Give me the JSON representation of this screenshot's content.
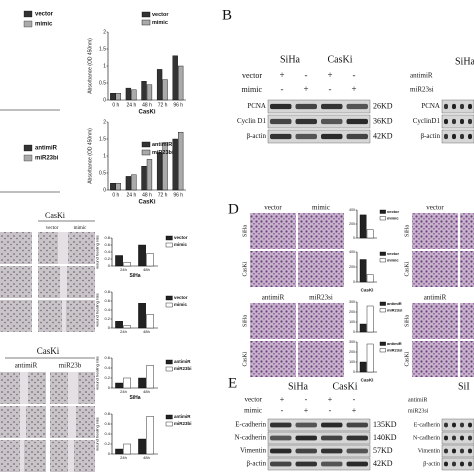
{
  "panel_labels": [
    "B",
    "D",
    "E"
  ],
  "left_legends": [
    [
      "vector",
      "mimic"
    ],
    [
      "antimiR",
      "miR23bi"
    ]
  ],
  "blot_b": {
    "cell_lines": [
      "SiHa",
      "CasKi"
    ],
    "conditions": [
      {
        "name": "vector",
        "signs": [
          "+",
          "-",
          "+",
          "-"
        ]
      },
      {
        "name": "mimic",
        "signs": [
          "-",
          "+",
          "-",
          "+"
        ]
      }
    ],
    "proteins": [
      "PCNA",
      "Cyclin D1",
      "β-actin"
    ],
    "sizes": [
      "26KD",
      "36KD",
      "42KD"
    ]
  },
  "blot_b_right": {
    "cell_line": "SiHa",
    "conditions": [
      "antimiR",
      "miR23si"
    ],
    "proteins": [
      "PCNA",
      "CyclinD1",
      "β-actin"
    ]
  },
  "wound": {
    "top": {
      "title": "CasKi",
      "groups": [
        "vector",
        "mimic"
      ]
    },
    "bottom": {
      "title": "CasKi",
      "groups": [
        "antimiR",
        "miR23b"
      ]
    }
  },
  "transwell": {
    "top": {
      "groups": [
        "vector",
        "mimic"
      ],
      "rows": [
        "SiHa",
        "CasKi"
      ]
    },
    "bottom": {
      "groups": [
        "antimiR",
        "miR23si"
      ],
      "rows": [
        "SiHa",
        "CasKi"
      ]
    },
    "right_top": {
      "groups": [
        "vector"
      ],
      "rows": [
        "SiHa",
        "CasKi"
      ]
    },
    "right_bottom": {
      "groups": [
        "antimiR"
      ],
      "rows": [
        "SiHa",
        "CasKi"
      ]
    }
  },
  "blot_e": {
    "cell_lines": [
      "SiHa",
      "CasKi"
    ],
    "conditions": [
      {
        "name": "vector",
        "signs": [
          "+",
          "-",
          "+",
          "-"
        ]
      },
      {
        "name": "mimic",
        "signs": [
          "-",
          "+",
          "-",
          "+"
        ]
      }
    ],
    "proteins": [
      "E-cadherin",
      "N-cadherin",
      "Vimentin",
      "β-actin"
    ],
    "sizes": [
      "135KD",
      "140KD",
      "57KD",
      "42KD"
    ]
  },
  "blot_e_right": {
    "cell_line": "SiI",
    "conditions": [
      "antimiR",
      "miR23si"
    ],
    "proteins": [
      "E-cadherin",
      "N-cadherin",
      "Vimentin",
      "β-actin"
    ]
  },
  "chart_data": [
    {
      "type": "bar",
      "ylabel": "Absorbance (OD 450nm)",
      "xlabel": "CasKi",
      "categories": [
        "0 h",
        "24 h",
        "48 h",
        "72 h",
        "96 h"
      ],
      "series": [
        {
          "name": "vector",
          "color": "#333333",
          "values": [
            0.2,
            0.35,
            0.55,
            0.9,
            1.3
          ]
        },
        {
          "name": "mimic",
          "color": "#aaaaaa",
          "values": [
            0.2,
            0.3,
            0.45,
            0.6,
            1.0
          ]
        }
      ],
      "ylim": [
        0,
        2
      ],
      "yticks": [
        0,
        0.5,
        1,
        1.5,
        2
      ]
    },
    {
      "type": "bar",
      "ylabel": "Absorbance (OD 450nm)",
      "xlabel": "CasKi",
      "categories": [
        "0 h",
        "24 h",
        "48 h",
        "72 h",
        "96 h"
      ],
      "series": [
        {
          "name": "antimiR",
          "color": "#333333",
          "values": [
            0.2,
            0.4,
            0.7,
            1.1,
            1.5
          ]
        },
        {
          "name": "miR23bi",
          "color": "#aaaaaa",
          "values": [
            0.2,
            0.45,
            0.9,
            1.4,
            1.7
          ]
        }
      ],
      "ylim": [
        0,
        2
      ],
      "yticks": [
        0,
        0.5,
        1,
        1.5,
        2
      ]
    },
    {
      "type": "bar",
      "ylabel": "wound healing rate",
      "xlabel": "SiHa",
      "categories": [
        "24h",
        "48h"
      ],
      "series": [
        {
          "name": "vector",
          "color": "#222222",
          "values": [
            0.3,
            0.6
          ]
        },
        {
          "name": "mimic",
          "color": "#ffffff",
          "values": [
            0.1,
            0.35
          ]
        }
      ],
      "ylim": [
        0,
        0.8
      ],
      "yticks": [
        0,
        0.2,
        0.4,
        0.6,
        0.8
      ]
    },
    {
      "type": "bar",
      "ylabel": "wound healing rate",
      "categories": [
        "24h",
        "48h"
      ],
      "series": [
        {
          "name": "vector",
          "color": "#222222",
          "values": [
            0.15,
            0.55
          ]
        },
        {
          "name": "mimic",
          "color": "#ffffff",
          "values": [
            0.05,
            0.3
          ]
        }
      ],
      "ylim": [
        0,
        0.8
      ],
      "yticks": [
        0,
        0.2,
        0.4,
        0.6,
        0.8
      ]
    },
    {
      "type": "bar",
      "ylabel": "wound healing rate",
      "xlabel": "SiHa",
      "categories": [
        "24h",
        "48h"
      ],
      "series": [
        {
          "name": "antimiR",
          "color": "#222222",
          "values": [
            0.1,
            0.2
          ]
        },
        {
          "name": "miR23bi",
          "color": "#ffffff",
          "values": [
            0.2,
            0.45
          ]
        }
      ],
      "ylim": [
        0,
        0.6
      ],
      "yticks": [
        0,
        0.2,
        0.4,
        0.6
      ]
    },
    {
      "type": "bar",
      "ylabel": "wound healing rate",
      "categories": [
        "24h",
        "48h"
      ],
      "series": [
        {
          "name": "antimiR",
          "color": "#222222",
          "values": [
            0.1,
            0.3
          ]
        },
        {
          "name": "miR23bi",
          "color": "#ffffff",
          "values": [
            0.2,
            0.75
          ]
        }
      ],
      "ylim": [
        0,
        0.8
      ],
      "yticks": [
        0,
        0.2,
        0.4,
        0.6,
        0.8
      ]
    },
    {
      "type": "bar",
      "categories": [
        null
      ],
      "series": [
        {
          "name": "vector",
          "color": "#222222",
          "values": [
            330
          ]
        },
        {
          "name": "mimic",
          "color": "#ffffff",
          "values": [
            120
          ]
        }
      ],
      "ylim": [
        0,
        400
      ],
      "yticks": [
        0,
        200,
        400
      ]
    },
    {
      "type": "bar",
      "xlabel": "CasKi",
      "categories": [
        null
      ],
      "series": [
        {
          "name": "vector",
          "color": "#222222",
          "values": [
            300
          ]
        },
        {
          "name": "mimic",
          "color": "#ffffff",
          "values": [
            100
          ]
        }
      ],
      "ylim": [
        0,
        400
      ],
      "yticks": [
        0,
        200,
        400
      ]
    },
    {
      "type": "bar",
      "categories": [
        null
      ],
      "series": [
        {
          "name": "antimiR",
          "color": "#222222",
          "values": [
            80
          ]
        },
        {
          "name": "miR23si",
          "color": "#ffffff",
          "values": [
            260
          ]
        }
      ],
      "ylim": [
        0,
        300
      ],
      "yticks": [
        0,
        100,
        200,
        300
      ]
    },
    {
      "type": "bar",
      "xlabel": "CasKi",
      "categories": [
        null
      ],
      "series": [
        {
          "name": "antimiR",
          "color": "#222222",
          "values": [
            100
          ]
        },
        {
          "name": "miR23si",
          "color": "#ffffff",
          "values": [
            280
          ]
        }
      ],
      "ylim": [
        0,
        300
      ],
      "yticks": [
        0,
        100,
        200,
        300
      ]
    }
  ]
}
